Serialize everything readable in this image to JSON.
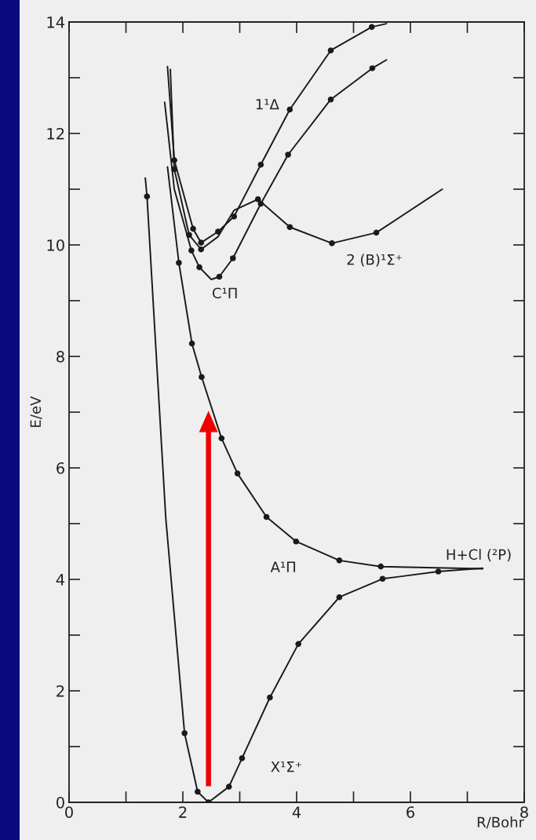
{
  "chart_data": {
    "type": "line",
    "xlabel": "R/Bohr",
    "ylabel": "E/eV",
    "xlim": [
      0,
      8
    ],
    "ylim": [
      0,
      14
    ],
    "xticks": [
      0,
      {
        "value": 1,
        "label": null
      },
      2,
      {
        "value": 3,
        "label": null
      },
      4,
      {
        "value": 5,
        "label": null
      },
      6,
      {
        "value": 7,
        "label": null
      },
      8
    ],
    "yticks": [
      0,
      {
        "value": 1,
        "label": null
      },
      2,
      {
        "value": 3,
        "label": null
      },
      4,
      {
        "value": 5,
        "label": null
      },
      6,
      {
        "value": 7,
        "label": null
      },
      8,
      {
        "value": 9,
        "label": null
      },
      10,
      {
        "value": 11,
        "label": null
      },
      12,
      {
        "value": 13,
        "label": null
      },
      14
    ],
    "grid": false,
    "legend": false,
    "series": [
      {
        "color": "#1a1a1a",
        "x": [
          1.34,
          1.37,
          1.7,
          2.03,
          2.26,
          2.45,
          2.81,
          3.04,
          3.53,
          4.03,
          4.75,
          5.51,
          6.49,
          7.27
        ],
        "values": [
          11.2,
          10.87,
          5.1,
          1.24,
          0.19,
          0,
          0.28,
          0.79,
          1.88,
          2.84,
          3.68,
          4.01,
          4.14,
          4.2
        ]
      },
      {
        "type": "scatter",
        "marker": "circle",
        "color": "#1a1a1a",
        "x": [
          1.37,
          2.03,
          2.26,
          2.45,
          2.81,
          3.04,
          3.53,
          4.03,
          4.75,
          5.51,
          6.49
        ],
        "values": [
          10.87,
          1.24,
          0.19,
          0,
          0.28,
          0.79,
          1.88,
          2.84,
          3.68,
          4.01,
          4.14
        ]
      },
      {
        "color": "#1a1a1a",
        "x": [
          1.73,
          1.93,
          2.16,
          2.33,
          2.68,
          2.96,
          3.47,
          3.99,
          4.75,
          5.48,
          7.27
        ],
        "values": [
          11.4,
          9.68,
          8.23,
          7.63,
          6.53,
          5.9,
          5.12,
          4.68,
          4.34,
          4.23,
          4.19
        ]
      },
      {
        "type": "scatter",
        "marker": "circle",
        "color": "#1a1a1a",
        "x": [
          1.93,
          2.16,
          2.33,
          2.68,
          2.96,
          3.47,
          3.99,
          4.75,
          5.48
        ],
        "values": [
          9.68,
          8.23,
          7.63,
          6.53,
          5.9,
          5.12,
          4.68,
          4.34,
          4.23
        ]
      },
      {
        "color": "#1a1a1a",
        "x": [
          1.68,
          1.85,
          2.15,
          2.29,
          2.5,
          2.64,
          2.88,
          3.37,
          3.85,
          4.6,
          5.33,
          5.58
        ],
        "values": [
          12.56,
          11.0,
          9.9,
          9.6,
          9.38,
          9.43,
          9.76,
          10.74,
          11.62,
          12.61,
          13.17,
          13.32
        ]
      },
      {
        "type": "scatter",
        "marker": "circle",
        "color": "#1a1a1a",
        "x": [
          2.15,
          2.29,
          2.64,
          2.88,
          3.37,
          3.85,
          4.6,
          5.33
        ],
        "values": [
          9.9,
          9.6,
          9.43,
          9.76,
          10.74,
          11.62,
          12.61,
          13.17
        ]
      },
      {
        "color": "#1a1a1a",
        "x": [
          1.73,
          1.85,
          2.18,
          2.32,
          2.62,
          2.9,
          3.37,
          3.88,
          4.6,
          5.32,
          5.58
        ],
        "values": [
          13.2,
          11.52,
          10.29,
          10.04,
          10.24,
          10.51,
          11.44,
          12.43,
          13.49,
          13.91,
          13.97
        ]
      },
      {
        "type": "scatter",
        "marker": "circle",
        "color": "#1a1a1a",
        "x": [
          1.85,
          2.18,
          2.32,
          2.62,
          2.9,
          3.37,
          3.88,
          4.6,
          5.32
        ],
        "values": [
          11.52,
          10.29,
          10.04,
          10.24,
          10.51,
          11.44,
          12.43,
          13.49,
          13.91
        ]
      },
      {
        "color": "#1a1a1a",
        "x": [
          1.78,
          1.85,
          2.11,
          2.32,
          2.62,
          2.9,
          3.32,
          3.88,
          4.62,
          5.4,
          6.56
        ],
        "values": [
          13.15,
          11.36,
          10.18,
          9.92,
          10.15,
          10.62,
          10.82,
          10.32,
          10.03,
          10.22,
          11.0
        ]
      },
      {
        "type": "scatter",
        "marker": "circle",
        "color": "#1a1a1a",
        "x": [
          1.85,
          2.11,
          2.32,
          3.32,
          3.88,
          4.62,
          5.4
        ],
        "values": [
          11.36,
          10.18,
          9.92,
          10.82,
          10.32,
          10.03,
          10.22
        ]
      }
    ],
    "annotations": [
      "1¹Δ",
      "2 (B)¹Σ⁺",
      "C¹Π",
      "A¹Π",
      "X¹Σ⁺",
      "H+Cl (²P)"
    ]
  }
}
